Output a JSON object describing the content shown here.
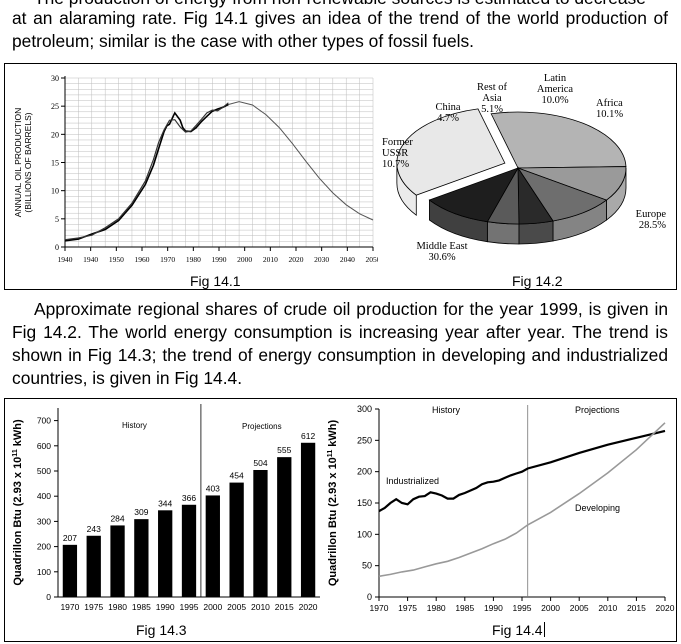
{
  "text": {
    "top_cut_line": "The production of energy from non-renewable sources is estimated to decrease",
    "para1": "at an alaraming rate. Fig 14.1 gives an idea of the trend of the world production of petroleum; similar is the case with other types of fossil fuels.",
    "para2": "Approximate regional shares of crude oil production for the year 1999, is given in Fig 14.2. The world energy consumption is increasing year after year. The trend is shown in Fig 14.3; the trend of energy consumption in  developing and industrialized countries, is given in Fig 14.4."
  },
  "captions": {
    "fig1": "Fig  14.1",
    "fig2": "Fig  14.2",
    "fig3": "Fig  14.3",
    "fig4": "Fig  14.4"
  },
  "chart_data": [
    {
      "id": "fig14.1",
      "type": "line",
      "ylabel_line1": "ANNUAL OIL PRODUCTION",
      "ylabel_line2": "(BILLIONS OF BARRELS)",
      "x_ticks": [
        "1940",
        "1940",
        "1950",
        "1960",
        "1970",
        "1980",
        "1990",
        "2000",
        "2010",
        "2020",
        "2030",
        "2040",
        "2050"
      ],
      "y_ticks": [
        "0",
        "5",
        "10",
        "15",
        "20",
        "25",
        "30"
      ],
      "ylim": [
        0,
        30
      ],
      "xlim": [
        1935,
        2050
      ],
      "series": [
        {
          "kind": "historical",
          "x": [
            1935,
            1940,
            1945,
            1950,
            1955,
            1960,
            1965,
            1968,
            1970,
            1972,
            1973,
            1974,
            1976,
            1978,
            1979,
            1980,
            1982,
            1984,
            1986,
            1988,
            1990,
            1992,
            1994,
            1996
          ],
          "y": [
            1.1,
            1.4,
            2.3,
            3.1,
            4.7,
            7.4,
            11.1,
            14.5,
            17.5,
            20.5,
            21.5,
            21.8,
            23.8,
            22.5,
            21.2,
            20.6,
            20.5,
            21.2,
            22.3,
            23.2,
            24.1,
            24.5,
            24.8,
            25.3
          ]
        },
        {
          "kind": "historical-alt",
          "x": [
            1935,
            1940,
            1945,
            1950,
            1955,
            1960,
            1965,
            1968,
            1970,
            1972,
            1974,
            1976,
            1978,
            1980,
            1982,
            1984,
            1986,
            1988,
            1990,
            1992,
            1994,
            1996
          ],
          "y": [
            1.3,
            1.6,
            2.1,
            3.4,
            5.0,
            7.8,
            11.7,
            15.5,
            18.6,
            20.8,
            22.5,
            22.6,
            21.3,
            20.4,
            20.6,
            21.6,
            22.7,
            23.8,
            24.3,
            24.2,
            24.8,
            25.6
          ]
        },
        {
          "kind": "projection",
          "x": [
            1996,
            2000,
            2005,
            2010,
            2015,
            2020,
            2025,
            2030,
            2035,
            2040,
            2045,
            2050
          ],
          "y": [
            25.3,
            25.8,
            25.2,
            23.5,
            21.2,
            18.3,
            15.2,
            12.2,
            9.6,
            7.5,
            5.9,
            4.8
          ]
        }
      ],
      "grid": true
    },
    {
      "id": "fig14.2",
      "type": "pie",
      "labels": [
        "Europe",
        "Africa",
        "Latin America",
        "Rest of Asia",
        "China",
        "Former USSR",
        "Middle East"
      ],
      "label_text": [
        [
          "Europe",
          "28.5%"
        ],
        [
          "Africa",
          "10.1%"
        ],
        [
          "Latin",
          "America",
          "10.0%"
        ],
        [
          "Rest of",
          "Asia",
          "5.1%"
        ],
        [
          "China",
          "4.7%"
        ],
        [
          "Former",
          "USSR",
          "10.7%"
        ],
        [
          "Middle East",
          "30.6%"
        ]
      ],
      "values": [
        28.5,
        10.1,
        10.0,
        5.1,
        4.7,
        10.7,
        30.6
      ],
      "colors": [
        "#b4b4b4",
        "#9a9a9a",
        "#6e6e6e",
        "#2a2a2a",
        "#5a5a5a",
        "#1e1e1e",
        "#e8e8e8"
      ],
      "exploded": "Middle East"
    },
    {
      "id": "fig14.3",
      "type": "bar",
      "categories": [
        "1970",
        "1975",
        "1980",
        "1985",
        "1990",
        "1995",
        "2000",
        "2005",
        "2010",
        "2015",
        "2020"
      ],
      "values": [
        207,
        243,
        284,
        309,
        344,
        366,
        403,
        454,
        504,
        555,
        612
      ],
      "ylabel": "Quadrillon Btu (2.93 x 10",
      "ylabel_exp": "11",
      "ylabel_end": " kWh)",
      "y_ticks": [
        "0",
        "100",
        "200",
        "300",
        "400",
        "500",
        "600",
        "700"
      ],
      "ylim": [
        0,
        750
      ],
      "divider_after": "1995",
      "section_labels": [
        "History",
        "Projections"
      ]
    },
    {
      "id": "fig14.4",
      "type": "line",
      "x_ticks": [
        "1970",
        "1975",
        "1980",
        "1985",
        "1990",
        "1995",
        "2000",
        "2005",
        "2010",
        "2015",
        "2020"
      ],
      "y_ticks": [
        "0",
        "50",
        "100",
        "150",
        "200",
        "250",
        "300"
      ],
      "ylim": [
        0,
        300
      ],
      "xlim": [
        1970,
        2020
      ],
      "ylabel": "Quadrillon Btu (2.93 x 10",
      "ylabel_exp": "11",
      "ylabel_end": " kWh)",
      "divider_x": 1996,
      "section_labels": [
        "History",
        "Projections"
      ],
      "series": [
        {
          "name": "Industrialized",
          "x": [
            1970,
            1971,
            1972,
            1973,
            1974,
            1975,
            1976,
            1977,
            1978,
            1979,
            1980,
            1981,
            1982,
            1983,
            1984,
            1985,
            1986,
            1987,
            1988,
            1989,
            1990,
            1991,
            1992,
            1993,
            1994,
            1995,
            1996,
            2000,
            2005,
            2010,
            2015,
            2020
          ],
          "y": [
            137,
            142,
            150,
            156,
            150,
            148,
            156,
            160,
            161,
            167,
            165,
            162,
            157,
            157,
            163,
            166,
            170,
            174,
            180,
            183,
            184,
            186,
            190,
            194,
            197,
            200,
            205,
            215,
            230,
            243,
            254,
            265
          ]
        },
        {
          "name": "Developing",
          "x": [
            1970,
            1972,
            1974,
            1976,
            1978,
            1980,
            1982,
            1984,
            1986,
            1988,
            1990,
            1992,
            1994,
            1996,
            2000,
            2005,
            2010,
            2015,
            2020
          ],
          "y": [
            33,
            36,
            40,
            43,
            48,
            53,
            57,
            63,
            70,
            77,
            85,
            92,
            102,
            115,
            135,
            165,
            198,
            235,
            278
          ]
        }
      ]
    }
  ]
}
